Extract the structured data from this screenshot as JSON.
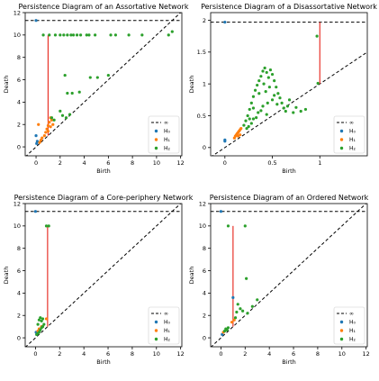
{
  "chart_data": [
    {
      "type": "scatter",
      "title": "Persistence Diagram of an Assortative Network",
      "xlabel": "Birth",
      "ylabel": "Death",
      "xlim": [
        -0.9,
        12.1
      ],
      "ylim": [
        -0.8,
        12.0
      ],
      "xticks": [
        0,
        2,
        4,
        6,
        8,
        10,
        12
      ],
      "yticks": [
        0,
        2,
        4,
        6,
        8,
        10,
        12
      ],
      "infinity_level": 11.3,
      "legend": [
        "∞",
        "H₀",
        "H₁",
        "H₂"
      ],
      "legend_position": "lower-right",
      "red_segment": {
        "x": 1.0,
        "y_from": 1.0,
        "y_to": 10.0
      },
      "series": [
        {
          "name": "H₀",
          "color": "#1f77b4",
          "points": [
            [
              0.0,
              11.3
            ],
            [
              0.0,
              1.0
            ],
            [
              0.05,
              0.3
            ],
            [
              0.1,
              0.5
            ]
          ]
        },
        {
          "name": "H₁",
          "color": "#ff7f0e",
          "points": [
            [
              0.2,
              2.0
            ],
            [
              0.3,
              0.4
            ],
            [
              0.4,
              0.6
            ],
            [
              0.5,
              0.8
            ],
            [
              0.7,
              1.0
            ],
            [
              0.8,
              1.3
            ],
            [
              0.9,
              1.6
            ],
            [
              1.0,
              1.9
            ],
            [
              1.1,
              2.2
            ],
            [
              1.2,
              2.6
            ],
            [
              1.3,
              2.4
            ],
            [
              1.0,
              1.4
            ],
            [
              1.2,
              1.8
            ],
            [
              1.4,
              2.0
            ]
          ]
        },
        {
          "name": "H₂",
          "color": "#2ca02c",
          "points": [
            [
              0.6,
              10.0
            ],
            [
              1.1,
              10.0
            ],
            [
              1.6,
              10.0
            ],
            [
              2.0,
              10.0
            ],
            [
              2.3,
              10.0
            ],
            [
              2.6,
              10.0
            ],
            [
              2.9,
              10.0
            ],
            [
              3.1,
              10.0
            ],
            [
              3.4,
              10.0
            ],
            [
              3.7,
              10.0
            ],
            [
              4.2,
              10.0
            ],
            [
              4.4,
              10.0
            ],
            [
              4.9,
              10.0
            ],
            [
              6.2,
              10.0
            ],
            [
              6.6,
              10.0
            ],
            [
              7.7,
              10.0
            ],
            [
              8.8,
              10.0
            ],
            [
              11.0,
              10.0
            ],
            [
              11.3,
              10.3
            ],
            [
              1.3,
              2.6
            ],
            [
              1.5,
              2.4
            ],
            [
              2.0,
              3.2
            ],
            [
              2.2,
              2.8
            ],
            [
              2.5,
              2.6
            ],
            [
              2.8,
              2.9
            ],
            [
              2.4,
              6.4
            ],
            [
              2.6,
              4.8
            ],
            [
              3.0,
              4.8
            ],
            [
              3.6,
              4.9
            ],
            [
              4.5,
              6.2
            ],
            [
              5.1,
              6.2
            ],
            [
              6.0,
              6.4
            ]
          ]
        }
      ]
    },
    {
      "type": "scatter",
      "title": "Persistence Diagram of a Disassortative Network",
      "xlabel": "Birth",
      "ylabel": "Death",
      "xlim": [
        -0.15,
        1.5
      ],
      "ylim": [
        -0.13,
        2.12
      ],
      "xticks": [
        0.0,
        0.5,
        1.0
      ],
      "yticks": [
        0.0,
        0.5,
        1.0,
        1.5,
        2.0
      ],
      "infinity_level": 1.97,
      "legend": [
        "∞",
        "H₀",
        "H₁",
        "H₂"
      ],
      "legend_position": "lower-right",
      "red_segment": {
        "x": 1.0,
        "y_from": 1.0,
        "y_to": 1.97
      },
      "series": [
        {
          "name": "H₀",
          "color": "#1f77b4",
          "points": [
            [
              0.0,
              1.97
            ],
            [
              0.0,
              0.1
            ],
            [
              0.0,
              0.12
            ]
          ]
        },
        {
          "name": "H₁",
          "color": "#ff7f0e",
          "points": [
            [
              0.1,
              0.15
            ],
            [
              0.11,
              0.18
            ],
            [
              0.12,
              0.2
            ],
            [
              0.13,
              0.22
            ],
            [
              0.14,
              0.24
            ],
            [
              0.15,
              0.26
            ],
            [
              0.16,
              0.28
            ],
            [
              0.17,
              0.3
            ],
            [
              0.14,
              0.18
            ],
            [
              0.16,
              0.2
            ]
          ]
        },
        {
          "name": "H₂",
          "color": "#2ca02c",
          "points": [
            [
              0.97,
              1.75
            ],
            [
              0.98,
              1.01
            ],
            [
              0.2,
              0.35
            ],
            [
              0.22,
              0.42
            ],
            [
              0.24,
              0.5
            ],
            [
              0.26,
              0.6
            ],
            [
              0.28,
              0.7
            ],
            [
              0.3,
              0.8
            ],
            [
              0.32,
              0.9
            ],
            [
              0.34,
              0.98
            ],
            [
              0.36,
              1.05
            ],
            [
              0.38,
              1.12
            ],
            [
              0.4,
              1.2
            ],
            [
              0.42,
              1.25
            ],
            [
              0.44,
              1.18
            ],
            [
              0.46,
              1.1
            ],
            [
              0.48,
              1.22
            ],
            [
              0.5,
              1.15
            ],
            [
              0.52,
              1.05
            ],
            [
              0.54,
              0.95
            ],
            [
              0.56,
              0.85
            ],
            [
              0.58,
              0.78
            ],
            [
              0.6,
              0.7
            ],
            [
              0.62,
              0.62
            ],
            [
              0.64,
              0.57
            ],
            [
              0.66,
              0.65
            ],
            [
              0.68,
              0.75
            ],
            [
              0.72,
              0.55
            ],
            [
              0.75,
              0.63
            ],
            [
              0.8,
              0.57
            ],
            [
              0.85,
              0.6
            ],
            [
              0.25,
              0.33
            ],
            [
              0.3,
              0.45
            ],
            [
              0.35,
              0.55
            ],
            [
              0.4,
              0.65
            ],
            [
              0.45,
              0.7
            ],
            [
              0.5,
              0.75
            ],
            [
              0.55,
              0.68
            ],
            [
              0.28,
              0.38
            ],
            [
              0.33,
              0.47
            ],
            [
              0.38,
              0.58
            ],
            [
              0.43,
              0.88
            ],
            [
              0.47,
              0.95
            ],
            [
              0.52,
              0.82
            ],
            [
              0.41,
              1.0
            ],
            [
              0.36,
              0.85
            ],
            [
              0.3,
              0.62
            ],
            [
              0.26,
              0.45
            ],
            [
              0.23,
              0.3
            ],
            [
              0.44,
              0.52
            ]
          ]
        }
      ]
    },
    {
      "type": "scatter",
      "title": "Persistence Diagram of a Core-periphery Network",
      "xlabel": "Birth",
      "ylabel": "Death",
      "xlim": [
        -0.85,
        12.1
      ],
      "ylim": [
        -0.8,
        12.0
      ],
      "xticks": [
        0,
        2,
        4,
        6,
        8,
        10,
        12
      ],
      "yticks": [
        0,
        2,
        4,
        6,
        8,
        10,
        12
      ],
      "infinity_level": 11.3,
      "legend": [
        "∞",
        "H₀",
        "H₁",
        "H₂"
      ],
      "legend_position": "lower-right",
      "red_segment": {
        "x": 1.0,
        "y_from": 1.0,
        "y_to": 10.0
      },
      "series": [
        {
          "name": "H₀",
          "color": "#1f77b4",
          "points": [
            [
              0.0,
              11.3
            ],
            [
              0.05,
              0.5
            ],
            [
              0.1,
              0.3
            ]
          ]
        },
        {
          "name": "H₁",
          "color": "#ff7f0e",
          "points": [
            [
              0.2,
              0.6
            ],
            [
              0.3,
              0.8
            ],
            [
              0.5,
              1.0
            ],
            [
              0.9,
              1.7
            ]
          ]
        },
        {
          "name": "H₂",
          "color": "#2ca02c",
          "points": [
            [
              0.9,
              10.0
            ],
            [
              1.1,
              10.0
            ],
            [
              0.2,
              1.2
            ],
            [
              0.3,
              1.6
            ],
            [
              0.4,
              1.8
            ],
            [
              0.5,
              1.5
            ],
            [
              0.6,
              1.7
            ],
            [
              0.7,
              1.2
            ],
            [
              0.4,
              0.7
            ],
            [
              0.3,
              0.5
            ],
            [
              0.5,
              0.9
            ],
            [
              0.2,
              0.4
            ],
            [
              0.6,
              1.0
            ],
            [
              0.1,
              0.3
            ]
          ]
        }
      ]
    },
    {
      "type": "scatter",
      "title": "Persistence Diagram of an Ordered Network",
      "xlabel": "Birth",
      "ylabel": "Death",
      "xlim": [
        -0.85,
        12.1
      ],
      "ylim": [
        -0.8,
        12.0
      ],
      "xticks": [
        0,
        2,
        4,
        6,
        8,
        10,
        12
      ],
      "yticks": [
        0,
        2,
        4,
        6,
        8,
        10,
        12
      ],
      "infinity_level": 11.3,
      "legend": [
        "∞",
        "H₀",
        "H₁",
        "H₂"
      ],
      "legend_position": "lower-right",
      "red_segment": {
        "x": 1.0,
        "y_from": 1.0,
        "y_to": 10.0
      },
      "series": [
        {
          "name": "H₀",
          "color": "#1f77b4",
          "points": [
            [
              0.0,
              11.3
            ],
            [
              1.0,
              3.6
            ],
            [
              0.1,
              0.3
            ]
          ]
        },
        {
          "name": "H₁",
          "color": "#ff7f0e",
          "points": [
            [
              0.2,
              0.5
            ],
            [
              0.9,
              1.4
            ],
            [
              1.1,
              1.6
            ]
          ]
        },
        {
          "name": "H₂",
          "color": "#2ca02c",
          "points": [
            [
              0.6,
              10.0
            ],
            [
              2.0,
              10.0
            ],
            [
              2.1,
              5.3
            ],
            [
              1.3,
              2.3
            ],
            [
              1.6,
              2.6
            ],
            [
              1.8,
              2.4
            ],
            [
              2.2,
              2.2
            ],
            [
              2.6,
              2.8
            ],
            [
              3.0,
              3.4
            ],
            [
              1.2,
              1.8
            ],
            [
              0.3,
              0.6
            ],
            [
              0.4,
              0.8
            ],
            [
              0.5,
              0.7
            ],
            [
              1.4,
              3.0
            ],
            [
              0.6,
              0.9
            ]
          ]
        }
      ]
    }
  ]
}
